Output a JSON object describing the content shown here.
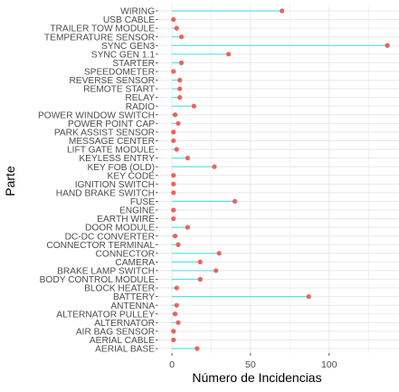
{
  "chart_data": {
    "type": "lollipop",
    "xlabel": "Número de Incidencias",
    "ylabel": "Parte",
    "xlim": [
      0,
      137
    ],
    "xticks": [
      0,
      50,
      100
    ],
    "grid": true,
    "background": "#ffffff",
    "colors": {
      "stem": "#5CE1EE",
      "point": "#F0605A",
      "grid": "#EBEBEB"
    },
    "categories": [
      "WIRING",
      "USB CABLE",
      "TRAILER TOW MODULE",
      "TEMPERATURE SENSOR",
      "SYNC GEN3",
      "SYNC GEN 1.1",
      "STARTER",
      "SPEEDOMETER",
      "REVERSE SENSOR",
      "REMOTE START",
      "RELAY",
      "RADIO",
      "POWER WINDOW SWITCH",
      "POWER POINT CAP",
      "PARK ASSIST SENSOR",
      "MESSAGE CENTER",
      "LIFT GATE MODULE",
      "KEYLESS ENTRY",
      "KEY FOB (OLD)",
      "KEY CODE",
      "IGNITION SWITCH",
      "HAND BRAKE SWITCH",
      "FUSE",
      "ENGINE",
      "EARTH WIRE",
      "DOOR MODULE",
      "DC-DC CONVERTER",
      "CONNECTOR TERMINAL",
      "CONNECTOR",
      "CAMERA",
      "BRAKE LAMP SWITCH",
      "BODY CONTROL MODULE",
      "BLOCK HEATER",
      "BATTERY",
      "ANTENNA",
      "ALTERNATOR PULLEY",
      "ALTERNATOR",
      "AIR BAG SENSOR",
      "AERIAL CABLE",
      "AERIAL BASE"
    ],
    "values": [
      70,
      1,
      3,
      6,
      137,
      36,
      6,
      1,
      5,
      5,
      5,
      14,
      2,
      4,
      1,
      1,
      3,
      10,
      27,
      1,
      1,
      1,
      40,
      1,
      1,
      10,
      2,
      4,
      30,
      18,
      28,
      18,
      3,
      87,
      3,
      2,
      4,
      1,
      1,
      16
    ]
  }
}
